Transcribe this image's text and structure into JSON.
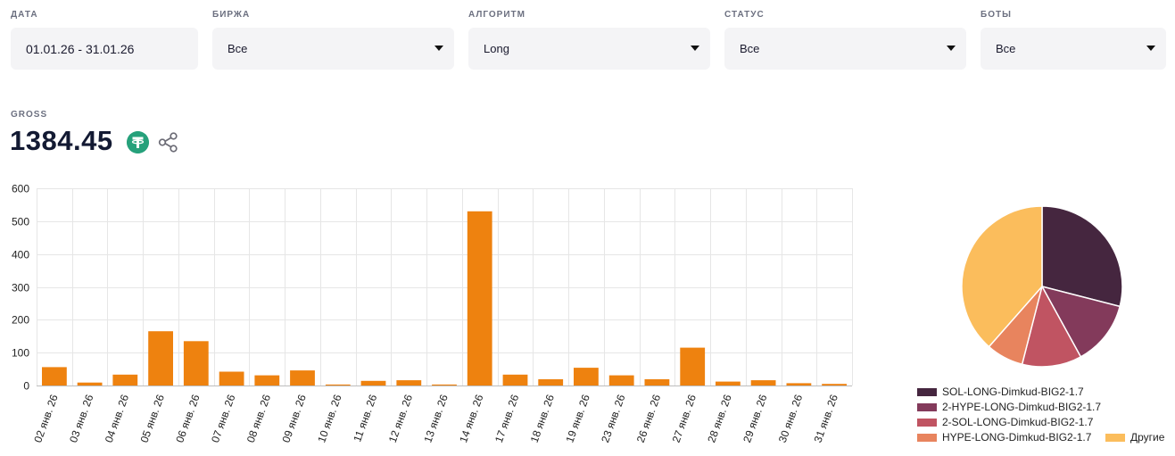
{
  "filters": [
    {
      "label": "ДАТА",
      "value": "01.01.26 - 31.01.26",
      "dropdown": false
    },
    {
      "label": "БИРЖА",
      "value": "Все",
      "dropdown": true
    },
    {
      "label": "АЛГОРИТМ",
      "value": "Long",
      "dropdown": true
    },
    {
      "label": "СТАТУС",
      "value": "Все",
      "dropdown": true
    },
    {
      "label": "БОТЫ",
      "value": "Все",
      "dropdown": true
    }
  ],
  "gross": {
    "label": "GROSS",
    "value": "1384.45",
    "currency_icon": "tether-icon",
    "share_icon": "share-icon"
  },
  "chart_data": [
    {
      "type": "bar",
      "categories": [
        "02 янв. 26",
        "03 янв. 26",
        "04 янв. 26",
        "05 янв. 26",
        "06 янв. 26",
        "07 янв. 26",
        "08 янв. 26",
        "09 янв. 26",
        "10 янв. 26",
        "11 янв. 26",
        "12 янв. 26",
        "13 янв. 26",
        "14 янв. 26",
        "17 янв. 26",
        "18 янв. 26",
        "19 янв. 26",
        "23 янв. 26",
        "26 янв. 26",
        "27 янв. 26",
        "28 янв. 26",
        "29 янв. 26",
        "30 янв. 26",
        "31 янв. 26"
      ],
      "values": [
        56,
        9,
        33,
        165,
        135,
        42,
        31,
        46,
        3,
        14,
        16,
        3,
        530,
        33,
        19,
        54,
        31,
        19,
        115,
        12,
        16,
        7,
        5
      ],
      "ylim": [
        0,
        600
      ],
      "yticks": [
        0,
        100,
        200,
        300,
        400,
        500,
        600
      ],
      "grid": true,
      "color": "#ee820f"
    },
    {
      "type": "pie",
      "slices": [
        {
          "label": "SOL-LONG-Dimkud-BIG2-1.7",
          "value": 29,
          "color": "#45263f"
        },
        {
          "label": "2-HYPE-LONG-Dimkud-BIG2-1.7",
          "value": 13,
          "color": "#833a5b"
        },
        {
          "label": "2-SOL-LONG-Dimkud-BIG2-1.7",
          "value": 12,
          "color": "#c05462"
        },
        {
          "label": "HYPE-LONG-Dimkud-BIG2-1.7",
          "value": 7.5,
          "color": "#e8845e"
        },
        {
          "label": "Другие",
          "value": 38.5,
          "color": "#fbbd5c"
        }
      ],
      "legend_position": "bottom"
    }
  ]
}
